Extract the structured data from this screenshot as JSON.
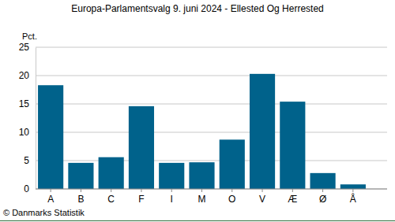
{
  "chart_data": {
    "type": "bar",
    "title": "Europa-Parlamentsvalg 9. juni 2024 - Ellested Og Herrested",
    "y_label": "Pct.",
    "annotations": [
      "© Danmarks Statistik"
    ],
    "categories": [
      "A",
      "B",
      "C",
      "F",
      "I",
      "M",
      "O",
      "V",
      "Æ",
      "Ø",
      "Å"
    ],
    "values": [
      18.3,
      4.6,
      5.6,
      14.6,
      4.6,
      4.7,
      8.7,
      20.3,
      15.4,
      2.8,
      0.8
    ],
    "color": "#00628b",
    "ylim": [
      0,
      25
    ],
    "yticks": [
      0,
      5,
      10,
      15,
      20,
      25
    ],
    "grid": true
  }
}
